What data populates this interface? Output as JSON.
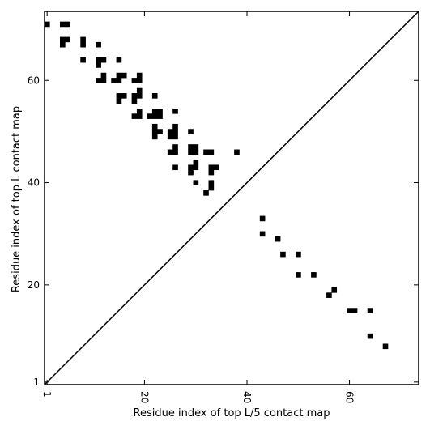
{
  "chart_data": {
    "type": "heatmap",
    "title": "",
    "xlabel": "Residue index of top L/5 contact map",
    "ylabel": "Residue index of top L contact map",
    "xlim": [
      0.5,
      73.5
    ],
    "ylim": [
      0.5,
      73.5
    ],
    "x_ticks": [
      1,
      20,
      40,
      60
    ],
    "x_tick_labels": [
      "1",
      "20",
      "40",
      "60"
    ],
    "y_ticks": [
      1,
      20,
      40,
      60
    ],
    "y_tick_labels": [
      "1",
      "20",
      "40",
      "60"
    ],
    "diagonal_line": true,
    "grid": false,
    "cell_color": "#000000",
    "upper_left_contacts": [
      [
        1,
        71
      ],
      [
        4,
        71
      ],
      [
        5,
        71
      ],
      [
        4,
        68
      ],
      [
        5,
        68
      ],
      [
        4,
        67
      ],
      [
        8,
        68
      ],
      [
        8,
        67
      ],
      [
        8,
        64
      ],
      [
        11,
        67
      ],
      [
        11,
        64
      ],
      [
        12,
        64
      ],
      [
        11,
        63
      ],
      [
        11,
        60
      ],
      [
        12,
        60
      ],
      [
        12,
        61
      ],
      [
        14,
        60
      ],
      [
        15,
        60
      ],
      [
        15,
        61
      ],
      [
        16,
        61
      ],
      [
        15,
        64
      ],
      [
        15,
        57
      ],
      [
        16,
        57
      ],
      [
        15,
        56
      ],
      [
        18,
        57
      ],
      [
        18,
        56
      ],
      [
        19,
        57
      ],
      [
        19,
        58
      ],
      [
        18,
        60
      ],
      [
        19,
        60
      ],
      [
        19,
        61
      ],
      [
        18,
        53
      ],
      [
        19,
        53
      ],
      [
        19,
        54
      ],
      [
        21,
        53
      ],
      [
        22,
        53
      ],
      [
        23,
        53
      ],
      [
        22,
        54
      ],
      [
        23,
        54
      ],
      [
        22,
        57
      ],
      [
        26,
        54
      ],
      [
        22,
        51
      ],
      [
        22,
        50
      ],
      [
        23,
        50
      ],
      [
        22,
        49
      ],
      [
        25,
        50
      ],
      [
        26,
        50
      ],
      [
        26,
        51
      ],
      [
        25,
        49
      ],
      [
        26,
        49
      ],
      [
        25,
        46
      ],
      [
        26,
        46
      ],
      [
        26,
        47
      ],
      [
        26,
        43
      ],
      [
        29,
        50
      ],
      [
        29,
        47
      ],
      [
        30,
        47
      ],
      [
        29,
        46
      ],
      [
        30,
        46
      ],
      [
        29,
        43
      ],
      [
        30,
        43
      ],
      [
        30,
        44
      ],
      [
        29,
        42
      ],
      [
        30,
        40
      ],
      [
        32,
        46
      ],
      [
        33,
        46
      ],
      [
        33,
        43
      ],
      [
        34,
        43
      ],
      [
        33,
        42
      ],
      [
        33,
        40
      ],
      [
        33,
        39
      ],
      [
        32,
        38
      ],
      [
        38,
        46
      ]
    ],
    "lower_right_contacts": [
      [
        43,
        33
      ],
      [
        43,
        30
      ],
      [
        46,
        29
      ],
      [
        47,
        26
      ],
      [
        50,
        26
      ],
      [
        50,
        22
      ],
      [
        53,
        22
      ],
      [
        56,
        18
      ],
      [
        57,
        19
      ],
      [
        60,
        15
      ],
      [
        61,
        15
      ],
      [
        64,
        15
      ],
      [
        64,
        10
      ],
      [
        67,
        8
      ]
    ]
  }
}
